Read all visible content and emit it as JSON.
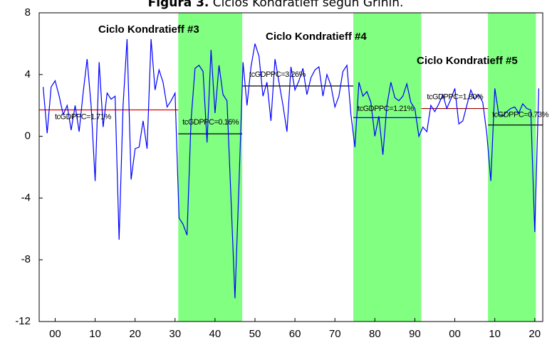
{
  "chart_data": {
    "type": "line",
    "figure_label": "Figura 3.",
    "title": "Ciclos Kondratieff según Grinin.",
    "xlim": [
      1896,
      2022
    ],
    "ylim": [
      -12,
      8
    ],
    "yticks": [
      -12,
      -8,
      -4,
      0,
      4,
      8
    ],
    "xticks": [
      {
        "value": 1900,
        "label": "00"
      },
      {
        "value": 1910,
        "label": "10"
      },
      {
        "value": 1920,
        "label": "20"
      },
      {
        "value": 1930,
        "label": "30"
      },
      {
        "value": 1940,
        "label": "40"
      },
      {
        "value": 1950,
        "label": "50"
      },
      {
        "value": 1960,
        "label": "60"
      },
      {
        "value": 1970,
        "label": "70"
      },
      {
        "value": 1980,
        "label": "80"
      },
      {
        "value": 1990,
        "label": "90"
      },
      {
        "value": 2000,
        "label": "00"
      },
      {
        "value": 2010,
        "label": "10"
      },
      {
        "value": 2020,
        "label": "20"
      }
    ],
    "color": "#0000ff",
    "x": [
      1897,
      1898,
      1899,
      1900,
      1901,
      1902,
      1903,
      1904,
      1905,
      1906,
      1907,
      1908,
      1909,
      1910,
      1911,
      1912,
      1913,
      1914,
      1915,
      1916,
      1917,
      1918,
      1919,
      1920,
      1921,
      1922,
      1923,
      1924,
      1925,
      1926,
      1927,
      1928,
      1929,
      1930,
      1931,
      1932,
      1933,
      1934,
      1935,
      1936,
      1937,
      1938,
      1939,
      1940,
      1941,
      1942,
      1943,
      1944,
      1945,
      1946,
      1947,
      1948,
      1949,
      1950,
      1951,
      1952,
      1953,
      1954,
      1955,
      1956,
      1957,
      1958,
      1959,
      1960,
      1961,
      1962,
      1963,
      1964,
      1965,
      1966,
      1967,
      1968,
      1969,
      1970,
      1971,
      1972,
      1973,
      1974,
      1975,
      1976,
      1977,
      1978,
      1979,
      1980,
      1981,
      1982,
      1983,
      1984,
      1985,
      1986,
      1987,
      1988,
      1989,
      1990,
      1991,
      1992,
      1993,
      1994,
      1995,
      1996,
      1997,
      1998,
      1999,
      2000,
      2001,
      2002,
      2003,
      2004,
      2005,
      2006,
      2007,
      2008,
      2009,
      2010,
      2011,
      2012,
      2013,
      2014,
      2015,
      2016,
      2017,
      2018,
      2019,
      2020,
      2021
    ],
    "values": [
      3.2,
      0.2,
      3.2,
      3.6,
      2.6,
      1.4,
      2.0,
      0.4,
      2.0,
      0.3,
      2.8,
      5.0,
      2.0,
      -2.9,
      4.8,
      0.6,
      2.8,
      2.4,
      2.6,
      -6.7,
      2.0,
      6.3,
      -2.8,
      -0.8,
      -0.7,
      1.0,
      -0.8,
      6.3,
      3.0,
      4.3,
      3.5,
      1.9,
      2.3,
      2.8,
      -5.3,
      -5.7,
      -6.4,
      1.0,
      4.4,
      4.6,
      4.2,
      -0.4,
      5.6,
      1.5,
      4.6,
      2.7,
      2.3,
      -4.0,
      -10.5,
      -3.0,
      4.8,
      2.0,
      4.5,
      6.0,
      5.2,
      2.6,
      3.5,
      1.0,
      5.0,
      3.5,
      2.0,
      0.3,
      4.5,
      3.0,
      3.6,
      4.4,
      2.7,
      3.8,
      4.3,
      4.5,
      2.6,
      4.0,
      3.3,
      1.9,
      2.6,
      4.2,
      4.6,
      1.4,
      -0.7,
      3.5,
      2.6,
      2.9,
      2.2,
      0.0,
      1.3,
      -1.2,
      2.0,
      3.5,
      2.5,
      2.3,
      2.6,
      3.4,
      2.2,
      1.8,
      0.0,
      0.6,
      0.3,
      2.0,
      1.6,
      2.1,
      2.7,
      1.8,
      2.4,
      3.1,
      0.8,
      1.0,
      2.0,
      3.0,
      2.4,
      2.7,
      2.2,
      0.2,
      -2.9,
      3.1,
      1.4,
      1.3,
      1.6,
      1.8,
      1.9,
      1.5,
      2.1,
      1.8,
      1.7,
      -6.2,
      3.1
    ],
    "bands": [
      {
        "start": 1930.8,
        "end": 1946.8,
        "color": "#80ff80"
      },
      {
        "start": 1974.6,
        "end": 1991.6,
        "color": "#80ff80"
      },
      {
        "start": 2008.3,
        "end": 2020.3,
        "color": "#80ff80"
      }
    ],
    "means": [
      {
        "start": 1896,
        "end": 1930.8,
        "value": 1.71,
        "label": "tcGDPPC=1.71%",
        "color": "#e00000"
      },
      {
        "start": 1930.8,
        "end": 1946.8,
        "value": 0.16,
        "label": "tcGDPPC=0.16%",
        "color": "#000000"
      },
      {
        "start": 1946.8,
        "end": 1974.6,
        "value": 3.26,
        "label": "tcGDPPC=3.26%",
        "color": "#000000"
      },
      {
        "start": 1974.6,
        "end": 1991.6,
        "value": 1.21,
        "label": "tcGDPPC=1.21%",
        "color": "#0000ff"
      },
      {
        "start": 1991.6,
        "end": 2008.3,
        "value": 1.8,
        "label": "tcGDPPC=1.80%",
        "color": "#a00000"
      },
      {
        "start": 2008.3,
        "end": 2022,
        "value": 0.73,
        "label": "tcGDPPC=0.73%",
        "color": "#000000"
      }
    ],
    "annotations": [
      "Ciclo Kondratieff #3",
      "Ciclo Kondratieff #4",
      "Ciclo Kondratieff #5"
    ]
  }
}
